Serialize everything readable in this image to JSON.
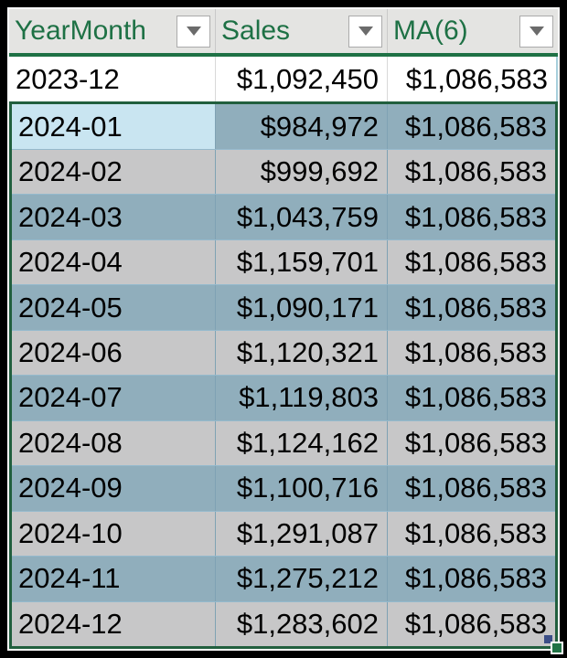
{
  "table": {
    "columns": [
      {
        "label": "YearMonth"
      },
      {
        "label": "Sales"
      },
      {
        "label": "MA(6)"
      }
    ],
    "rows": [
      {
        "yearmonth": "2023-12",
        "sales": "$1,092,450",
        "ma6": "$1,086,583",
        "selected": false,
        "band": "white",
        "active_cell": null
      },
      {
        "yearmonth": "2024-01",
        "sales": "$984,972",
        "ma6": "$1,086,583",
        "selected": true,
        "band": "dark",
        "active_cell": "yearmonth"
      },
      {
        "yearmonth": "2024-02",
        "sales": "$999,692",
        "ma6": "$1,086,583",
        "selected": true,
        "band": "light",
        "active_cell": null
      },
      {
        "yearmonth": "2024-03",
        "sales": "$1,043,759",
        "ma6": "$1,086,583",
        "selected": true,
        "band": "dark",
        "active_cell": null
      },
      {
        "yearmonth": "2024-04",
        "sales": "$1,159,701",
        "ma6": "$1,086,583",
        "selected": true,
        "band": "light",
        "active_cell": null
      },
      {
        "yearmonth": "2024-05",
        "sales": "$1,090,171",
        "ma6": "$1,086,583",
        "selected": true,
        "band": "dark",
        "active_cell": null
      },
      {
        "yearmonth": "2024-06",
        "sales": "$1,120,321",
        "ma6": "$1,086,583",
        "selected": true,
        "band": "light",
        "active_cell": null
      },
      {
        "yearmonth": "2024-07",
        "sales": "$1,119,803",
        "ma6": "$1,086,583",
        "selected": true,
        "band": "dark",
        "active_cell": null
      },
      {
        "yearmonth": "2024-08",
        "sales": "$1,124,162",
        "ma6": "$1,086,583",
        "selected": true,
        "band": "light",
        "active_cell": null
      },
      {
        "yearmonth": "2024-09",
        "sales": "$1,100,716",
        "ma6": "$1,086,583",
        "selected": true,
        "band": "dark",
        "active_cell": null
      },
      {
        "yearmonth": "2024-10",
        "sales": "$1,291,087",
        "ma6": "$1,086,583",
        "selected": true,
        "band": "light",
        "active_cell": null
      },
      {
        "yearmonth": "2024-11",
        "sales": "$1,275,212",
        "ma6": "$1,086,583",
        "selected": true,
        "band": "dark",
        "active_cell": null
      },
      {
        "yearmonth": "2024-12",
        "sales": "$1,283,602",
        "ma6": "$1,086,583",
        "selected": true,
        "band": "light",
        "active_cell": null
      }
    ]
  },
  "icons": {
    "filter_dropdown": "caret-down-icon",
    "fill_handle": "fill-handle-square",
    "table_resize": "table-resize-square"
  },
  "colors": {
    "header_text": "#1E7145",
    "header_bg": "#E4E4E2",
    "header_grid": "#C9C9C9",
    "accent_line": "#1E7145",
    "selection_border": "#215F3E",
    "selected_dark": "#90AEBC",
    "selected_light": "#C7C7C8",
    "active_cell": "#C9E5F1",
    "row_white": "#FFFFFF",
    "grid_light": "#D8D8D8",
    "grid_selected": "#7FA2B4",
    "row_sep_selected": "#95BACD",
    "fill_handle": "#217346",
    "table_handle": "#3B4E87",
    "filter_btn_border": "#ABABAB",
    "filter_caret": "#6B6B6B"
  }
}
